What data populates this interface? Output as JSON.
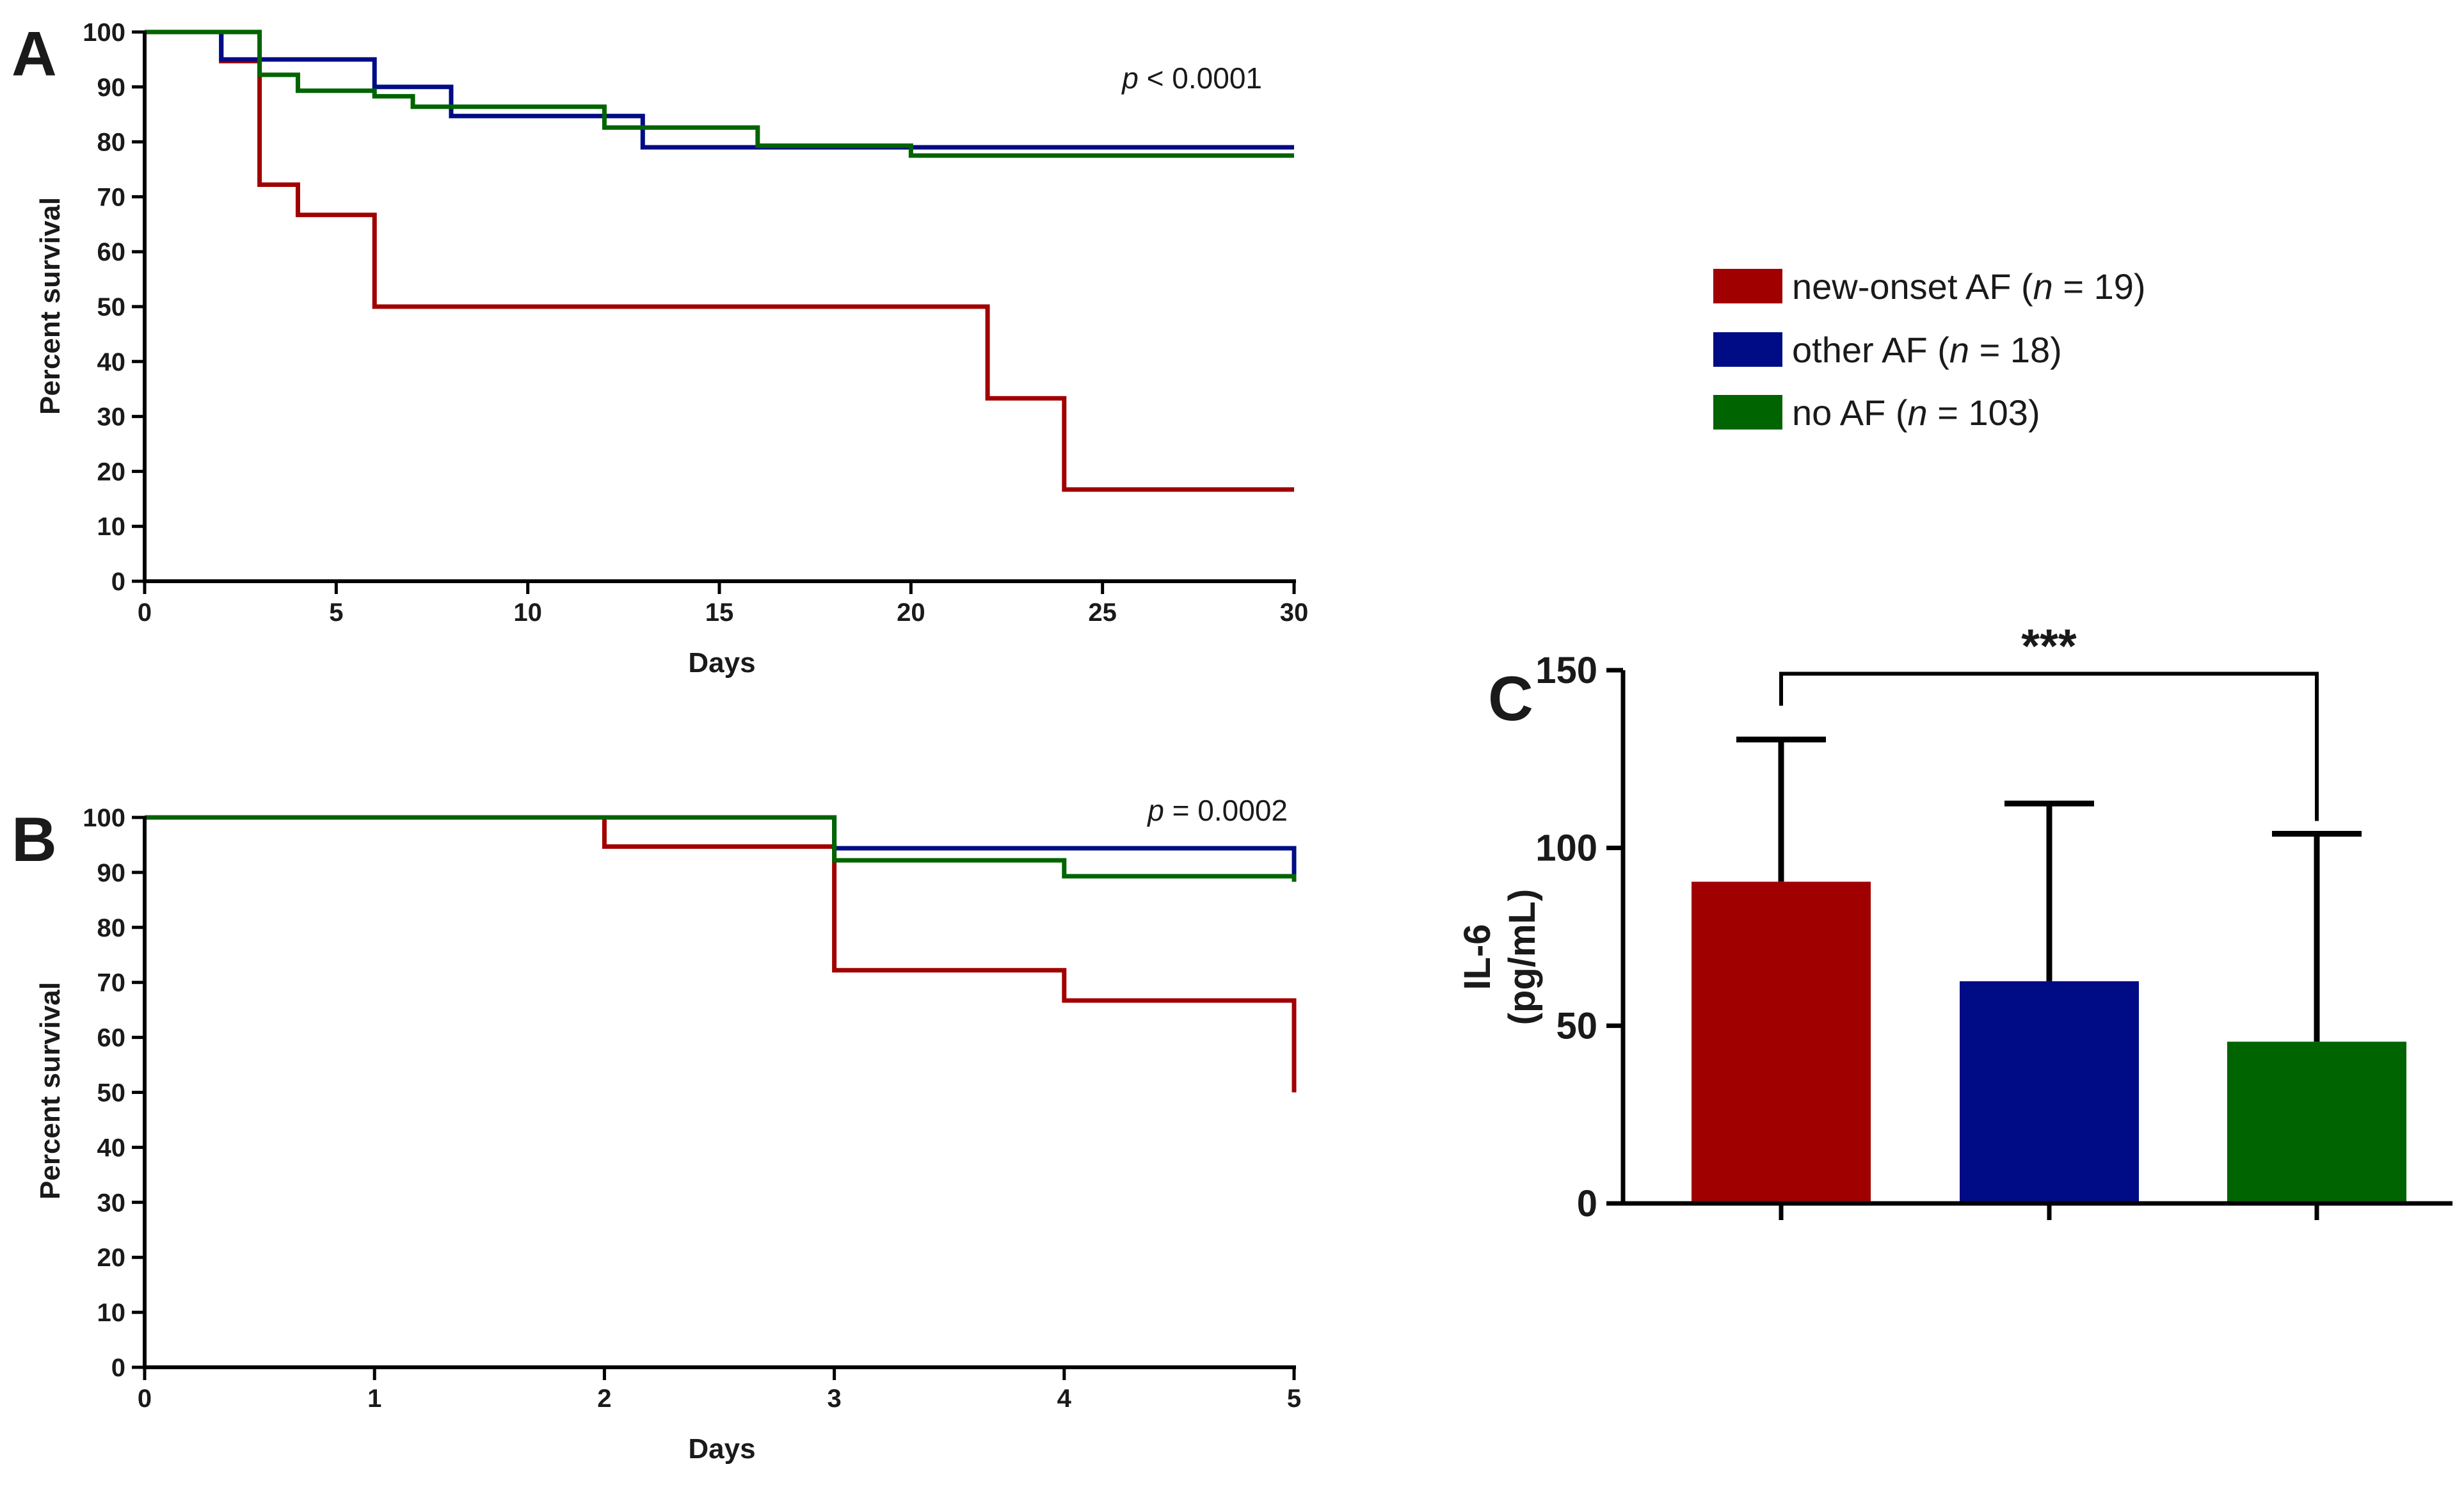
{
  "colors": {
    "new_onset": "#a10000",
    "other": "#000c85",
    "no_af": "#006400",
    "axis": "#000000"
  },
  "panels": {
    "A": {
      "letter": "A",
      "p_prefix": "p",
      "p_text": " < 0.0001"
    },
    "B": {
      "letter": "B",
      "p_prefix": "p",
      "p_text": " = 0.0002"
    },
    "C": {
      "letter": "C",
      "significance": "***"
    }
  },
  "legend": [
    {
      "label_pre": "new-onset AF (",
      "n_symbol": "n",
      "label_post": " = 19)",
      "color_key": "new_onset"
    },
    {
      "label_pre": "other AF (",
      "n_symbol": "n",
      "label_post": " = 18)",
      "color_key": "other"
    },
    {
      "label_pre": "no AF (",
      "n_symbol": "n",
      "label_post": " = 103)",
      "color_key": "no_af"
    }
  ],
  "chart_data": [
    {
      "id": "A",
      "type": "line",
      "subtype": "step",
      "title": "",
      "xlabel": "Days",
      "ylabel": "Percent survival",
      "xlim": [
        0,
        30
      ],
      "ylim": [
        0,
        100
      ],
      "xticks": [
        0,
        5,
        10,
        15,
        20,
        25,
        30
      ],
      "yticks": [
        0,
        10,
        20,
        30,
        40,
        50,
        60,
        70,
        80,
        90,
        100
      ],
      "series": [
        {
          "name": "new-onset AF (n = 19)",
          "color_key": "new_onset",
          "x": [
            0,
            2,
            3,
            4,
            6,
            22,
            24,
            30
          ],
          "y": [
            100,
            94.7,
            72.2,
            66.7,
            50,
            33.3,
            16.7,
            16.7
          ]
        },
        {
          "name": "other AF (n = 18)",
          "color_key": "other",
          "x": [
            0,
            2,
            6,
            8,
            13,
            30
          ],
          "y": [
            100,
            95,
            90,
            84.7,
            79,
            79
          ]
        },
        {
          "name": "no AF (n = 103)",
          "color_key": "no_af",
          "x": [
            0,
            3,
            4,
            6,
            7,
            12,
            16,
            20,
            30
          ],
          "y": [
            100,
            92.2,
            89.3,
            88.3,
            86.4,
            82.6,
            79.3,
            77.5,
            77.5
          ]
        }
      ]
    },
    {
      "id": "B",
      "type": "line",
      "subtype": "step",
      "title": "",
      "xlabel": "Days",
      "ylabel": "Percent survival",
      "xlim": [
        0,
        5
      ],
      "ylim": [
        0,
        100
      ],
      "xticks": [
        0,
        1,
        2,
        3,
        4,
        5
      ],
      "yticks": [
        0,
        10,
        20,
        30,
        40,
        50,
        60,
        70,
        80,
        90,
        100
      ],
      "series": [
        {
          "name": "new-onset AF (n = 19)",
          "color_key": "new_onset",
          "x": [
            0,
            2,
            3,
            4,
            5
          ],
          "y": [
            100,
            94.7,
            72.2,
            66.7,
            50
          ]
        },
        {
          "name": "other AF (n = 18)",
          "color_key": "other",
          "x": [
            0,
            3,
            5
          ],
          "y": [
            100,
            94.4,
            89
          ]
        },
        {
          "name": "no AF (n = 103)",
          "color_key": "no_af",
          "x": [
            0,
            3,
            4,
            5
          ],
          "y": [
            100,
            92.2,
            89.3,
            88.3
          ]
        }
      ]
    },
    {
      "id": "C",
      "type": "bar",
      "title": "",
      "xlabel": "",
      "ylabel_line1": "IL-6",
      "ylabel_line2": "(pg/mL)",
      "ylim": [
        0,
        150
      ],
      "yticks": [
        0,
        50,
        100,
        150
      ],
      "categories": [
        "new-onset AF",
        "other AF",
        "no AF"
      ],
      "values": [
        90.5,
        62.5,
        45.5
      ],
      "error_upper": [
        130.5,
        112.5,
        104
      ],
      "color_keys": [
        "new_onset",
        "other",
        "no_af"
      ],
      "bracket": {
        "from": 0,
        "to": 2,
        "y": 149,
        "label": "***"
      }
    }
  ]
}
